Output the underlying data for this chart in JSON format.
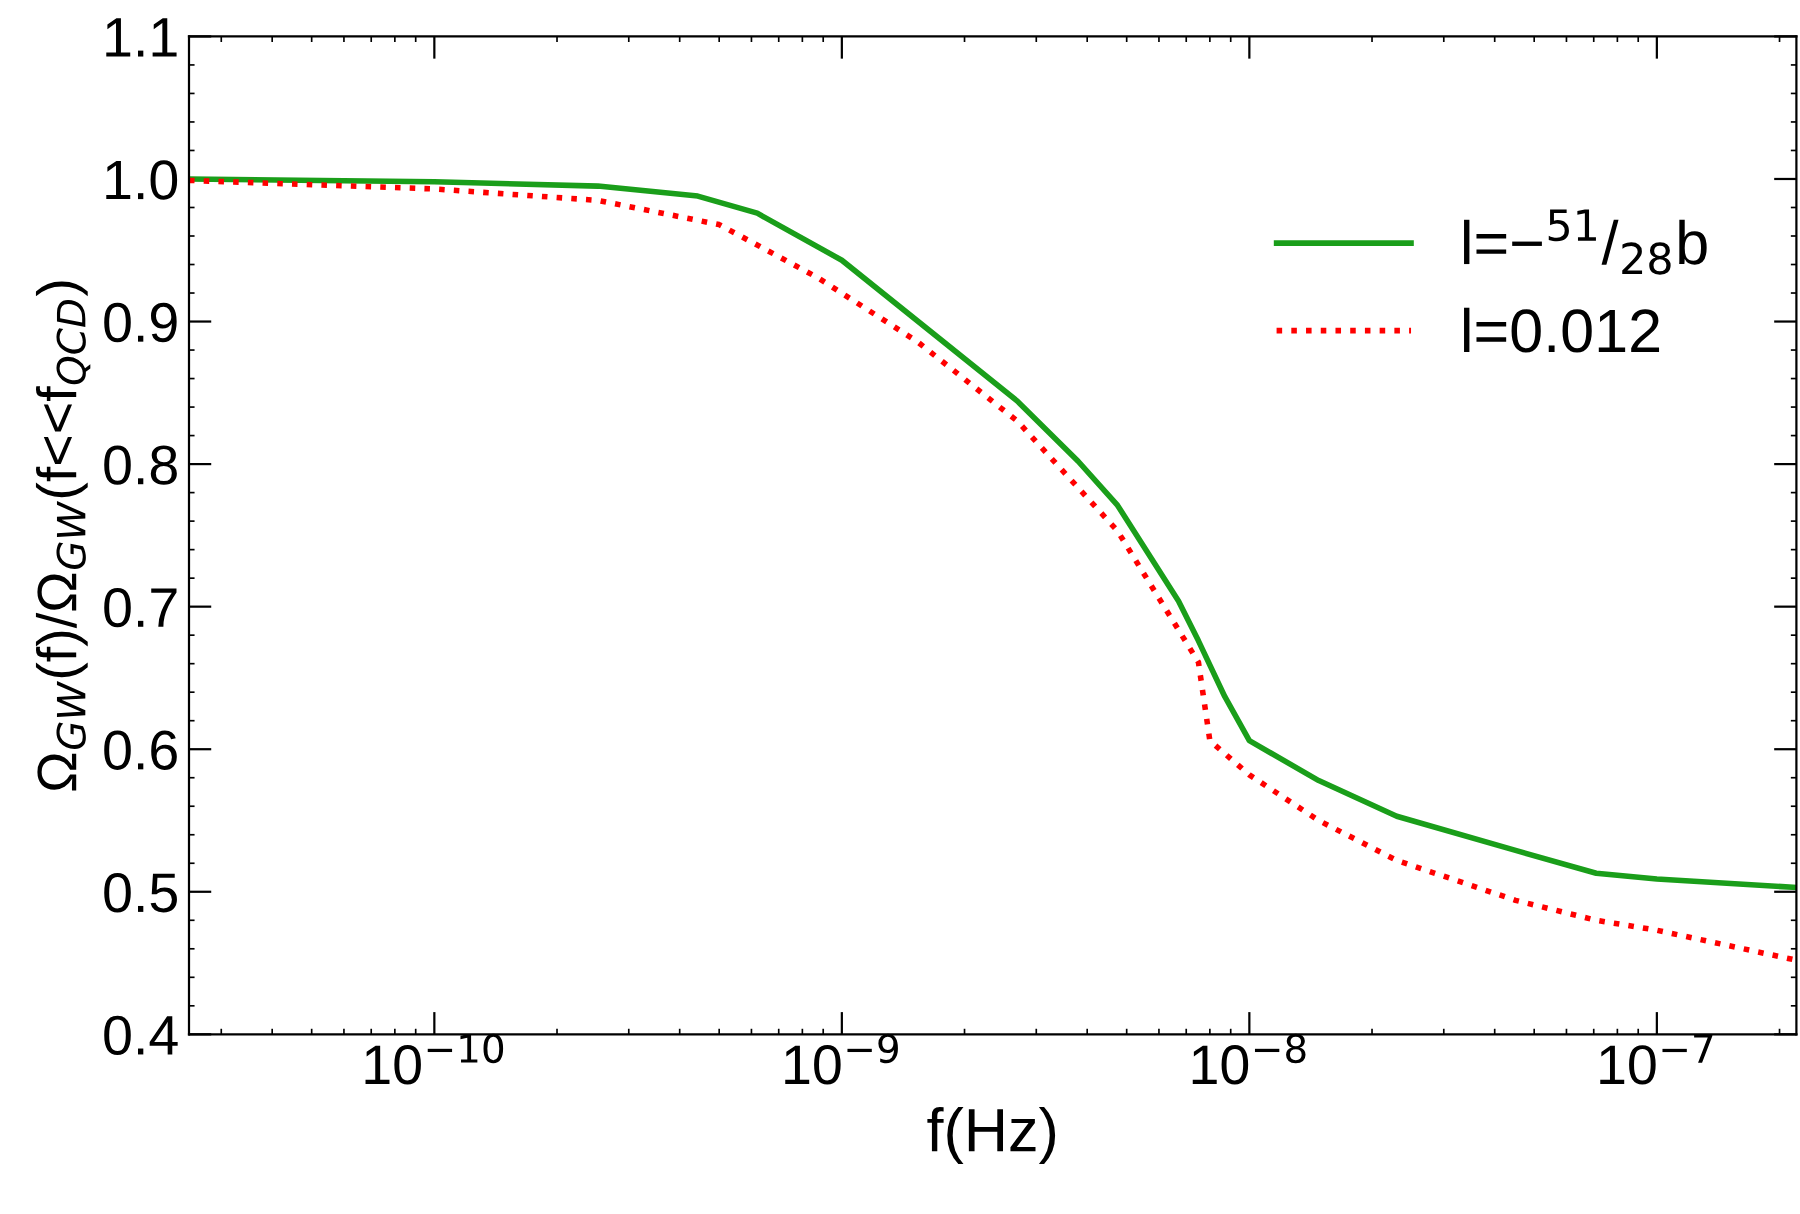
{
  "chart_data": {
    "type": "line",
    "xlabel": "f(Hz)",
    "ylabel": "Ω$_{GW}$(f)/Ω$_{GW}$(f<<f$_{QCD}$)",
    "log": "x",
    "xlim": [
      2.5e-11,
      2.2e-07
    ],
    "ylim": [
      0.4,
      1.1
    ],
    "xticks": [
      {
        "value": 1e-10,
        "label": "10$^{−10}$"
      },
      {
        "value": 1e-09,
        "label": "10$^{−9}$"
      },
      {
        "value": 1e-08,
        "label": "10$^{−8}$"
      },
      {
        "value": 1e-07,
        "label": "10$^{−7}$"
      }
    ],
    "yticks": [
      0.4,
      0.5,
      0.6,
      0.7,
      0.8,
      0.9,
      {
        "value": 1,
        "label": "1.0"
      },
      1.1
    ],
    "grid": false,
    "legend": "top right",
    "marker": "none",
    "series": [
      {
        "name": "l=−$^{51}$/$_{28}$b",
        "color": "#1a9e1a",
        "line_style": "solid",
        "x": [
          2.5e-11,
          1e-10,
          2.52e-10,
          4.43e-10,
          6.2e-10,
          1e-09,
          1.72e-09,
          2.7e-09,
          3.8e-09,
          4.75e-09,
          6.7e-09,
          7.5e-09,
          8.7e-09,
          1e-08,
          1.48e-08,
          2.3e-08,
          4.5e-08,
          7.1e-08,
          1e-07,
          2.2e-07
        ],
        "values": [
          1.0,
          0.998,
          0.995,
          0.988,
          0.976,
          0.943,
          0.889,
          0.844,
          0.802,
          0.771,
          0.704,
          0.676,
          0.637,
          0.606,
          0.578,
          0.553,
          0.529,
          0.513,
          0.509,
          0.503
        ]
      },
      {
        "name": "l=0.012",
        "color": "#ff0000",
        "line_style": "dotted",
        "x": [
          2.5e-11,
          1e-10,
          2.52e-10,
          5e-10,
          8.7e-10,
          1.53e-09,
          2.7e-09,
          4.75e-09,
          7.5e-09,
          8e-09,
          1e-08,
          1.48e-08,
          2.3e-08,
          4.5e-08,
          7.1e-08,
          1e-07,
          2.2e-07
        ],
        "values": [
          0.999,
          0.993,
          0.985,
          0.968,
          0.931,
          0.886,
          0.83,
          0.753,
          0.661,
          0.606,
          0.582,
          0.55,
          0.522,
          0.494,
          0.48,
          0.473,
          0.452
        ]
      }
    ]
  }
}
